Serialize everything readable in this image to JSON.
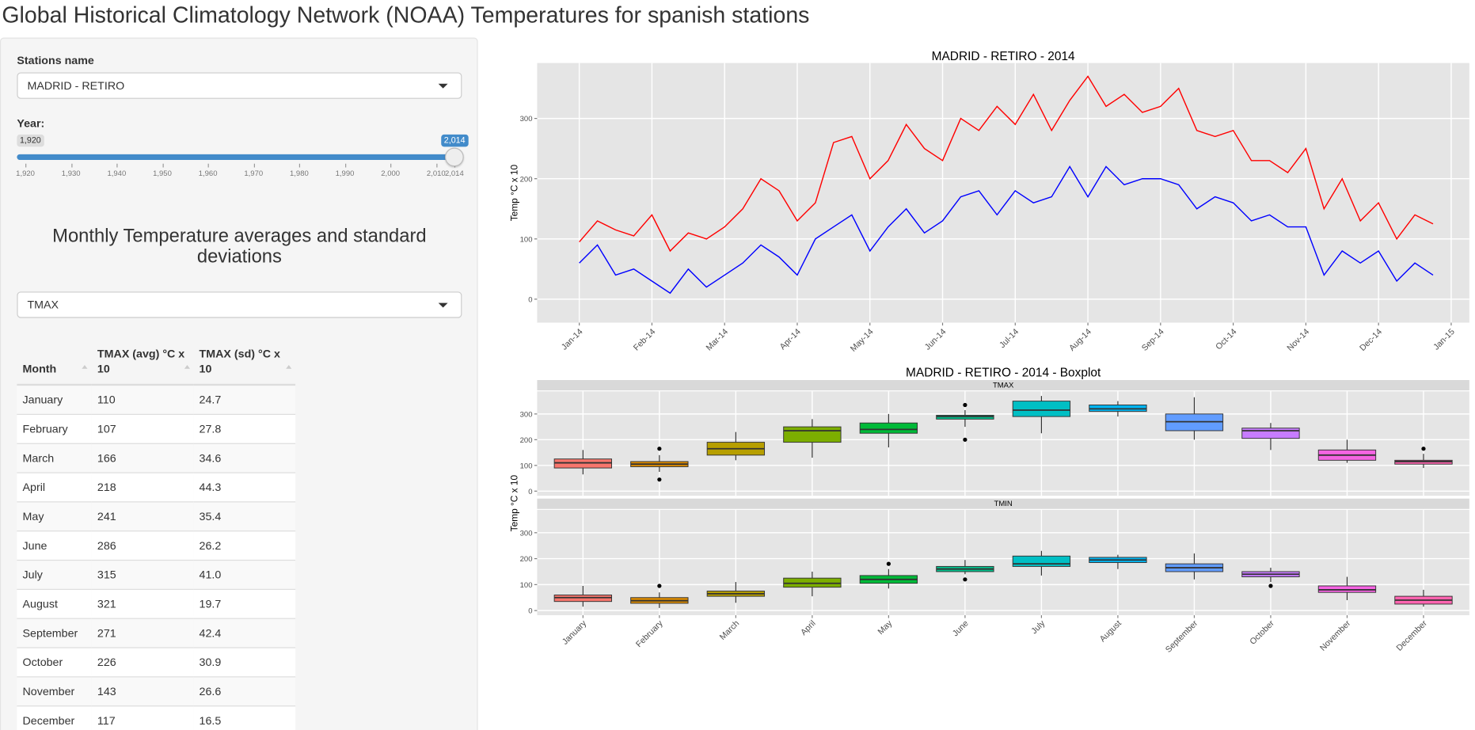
{
  "title": "Global Historical Climatology Network (NOAA) Temperatures for spanish stations",
  "sidebar": {
    "station_label": "Stations name",
    "station": "MADRID - RETIRO",
    "year_label": "Year:",
    "slider": {
      "min": 1920,
      "max": 2014,
      "value": 2014,
      "min_label": "1,920",
      "max_label": "2,014",
      "ticks": [
        {
          "value": 1920,
          "label": "1,920"
        },
        {
          "value": 1930,
          "label": "1,930"
        },
        {
          "value": 1940,
          "label": "1,940"
        },
        {
          "value": 1950,
          "label": "1,950"
        },
        {
          "value": 1960,
          "label": "1,960"
        },
        {
          "value": 1970,
          "label": "1,970"
        },
        {
          "value": 1980,
          "label": "1,980"
        },
        {
          "value": 1990,
          "label": "1,990"
        },
        {
          "value": 2000,
          "label": "2,000"
        },
        {
          "value": 2010,
          "label": "2,010"
        },
        {
          "value": 2014,
          "label": "2,014"
        }
      ]
    },
    "heading": "Monthly Temperature averages and standard deviations",
    "variable": "TMAX",
    "table": {
      "columns": [
        "Month",
        "TMAX (avg) °C x 10",
        "TMAX (sd) °C x 10"
      ],
      "rows": [
        [
          "January",
          "110",
          "24.7"
        ],
        [
          "February",
          "107",
          "27.8"
        ],
        [
          "March",
          "166",
          "34.6"
        ],
        [
          "April",
          "218",
          "44.3"
        ],
        [
          "May",
          "241",
          "35.4"
        ],
        [
          "June",
          "286",
          "26.2"
        ],
        [
          "July",
          "315",
          "41.0"
        ],
        [
          "August",
          "321",
          "19.7"
        ],
        [
          "September",
          "271",
          "42.4"
        ],
        [
          "October",
          "226",
          "30.9"
        ],
        [
          "November",
          "143",
          "26.6"
        ],
        [
          "December",
          "117",
          "16.5"
        ]
      ]
    }
  },
  "chart_data": [
    {
      "type": "line",
      "title": "MADRID - RETIRO - 2014",
      "y_label": "Temp °C x 10",
      "x": [
        0,
        0.25,
        0.5,
        0.75,
        1,
        1.25,
        1.5,
        1.75,
        2,
        2.25,
        2.5,
        2.75,
        3,
        3.25,
        3.5,
        3.75,
        4,
        4.25,
        4.5,
        4.75,
        5,
        5.25,
        5.5,
        5.75,
        6,
        6.25,
        6.5,
        6.75,
        7,
        7.25,
        7.5,
        7.75,
        8,
        8.25,
        8.5,
        8.75,
        9,
        9.25,
        9.5,
        9.75,
        10,
        10.25,
        10.5,
        10.75,
        11,
        11.25,
        11.5,
        11.75
      ],
      "xlim": [
        -0.58,
        12.25
      ],
      "xticks": [
        {
          "value": 0,
          "label": "Jan-14"
        },
        {
          "value": 1,
          "label": "Feb-14"
        },
        {
          "value": 2,
          "label": "Mar-14"
        },
        {
          "value": 3,
          "label": "Apr-14"
        },
        {
          "value": 4,
          "label": "May-14"
        },
        {
          "value": 5,
          "label": "Jun-14"
        },
        {
          "value": 6,
          "label": "Jul-14"
        },
        {
          "value": 7,
          "label": "Aug-14"
        },
        {
          "value": 8,
          "label": "Sep-14"
        },
        {
          "value": 9,
          "label": "Oct-14"
        },
        {
          "value": 10,
          "label": "Nov-14"
        },
        {
          "value": 11,
          "label": "Dec-14"
        },
        {
          "value": 12,
          "label": "Jan-15"
        }
      ],
      "ylim": [
        -39,
        392
      ],
      "yticks": [
        0,
        100,
        200,
        300
      ],
      "grid": true,
      "series": [
        {
          "color": "#ff0000",
          "values": [
            95,
            130,
            115,
            105,
            140,
            80,
            110,
            100,
            120,
            150,
            200,
            180,
            130,
            160,
            260,
            270,
            200,
            230,
            290,
            250,
            230,
            300,
            280,
            320,
            290,
            340,
            280,
            330,
            370,
            320,
            340,
            310,
            320,
            350,
            280,
            270,
            280,
            230,
            230,
            210,
            250,
            150,
            200,
            130,
            160,
            100,
            140,
            125
          ]
        },
        {
          "color": "#0000ff",
          "values": [
            60,
            90,
            40,
            50,
            30,
            10,
            50,
            20,
            40,
            60,
            90,
            70,
            40,
            100,
            120,
            140,
            80,
            120,
            150,
            110,
            130,
            170,
            180,
            140,
            180,
            160,
            170,
            220,
            170,
            220,
            190,
            200,
            200,
            190,
            150,
            170,
            160,
            130,
            140,
            120,
            120,
            40,
            80,
            60,
            80,
            30,
            60,
            40
          ]
        }
      ]
    },
    {
      "type": "boxplot",
      "title": "MADRID - RETIRO - 2014 - Boxplot",
      "y_label": "Temp °C x 10",
      "categories": [
        "January",
        "February",
        "March",
        "April",
        "May",
        "June",
        "July",
        "August",
        "September",
        "October",
        "November",
        "December"
      ],
      "colors": [
        "#F8766D",
        "#DE8C00",
        "#B79F00",
        "#7CAE00",
        "#00BA38",
        "#00C08B",
        "#00BFC4",
        "#00B4F0",
        "#619CFF",
        "#C77CFF",
        "#F564E3",
        "#FF64B0"
      ],
      "ylim": [
        -18,
        388
      ],
      "yticks": [
        0,
        100,
        200,
        300
      ],
      "grid": true,
      "facets": [
        {
          "name": "TMAX",
          "low": [
            65,
            75,
            120,
            130,
            170,
            250,
            225,
            290,
            200,
            160,
            110,
            90
          ],
          "q1": [
            90,
            95,
            140,
            190,
            225,
            280,
            290,
            310,
            235,
            205,
            120,
            105
          ],
          "median": [
            110,
            105,
            165,
            235,
            240,
            290,
            315,
            320,
            270,
            235,
            140,
            115
          ],
          "q3": [
            125,
            115,
            190,
            250,
            265,
            295,
            350,
            335,
            300,
            245,
            160,
            120
          ],
          "high": [
            160,
            140,
            230,
            280,
            300,
            315,
            370,
            350,
            365,
            265,
            200,
            145
          ],
          "outliers": [
            [],
            [
              165,
              45
            ],
            [],
            [],
            [],
            [
              335,
              200
            ],
            [],
            [],
            [],
            [],
            [],
            [
              165
            ]
          ]
        },
        {
          "name": "TMIN",
          "low": [
            15,
            10,
            30,
            55,
            85,
            140,
            135,
            160,
            120,
            110,
            40,
            15
          ],
          "q1": [
            35,
            28,
            55,
            90,
            105,
            150,
            170,
            185,
            150,
            130,
            70,
            25
          ],
          "median": [
            50,
            38,
            65,
            105,
            120,
            160,
            180,
            195,
            165,
            140,
            80,
            40
          ],
          "q3": [
            60,
            50,
            75,
            125,
            135,
            170,
            210,
            205,
            180,
            150,
            95,
            55
          ],
          "high": [
            95,
            70,
            110,
            150,
            160,
            195,
            230,
            215,
            220,
            165,
            130,
            80
          ],
          "outliers": [
            [],
            [
              95
            ],
            [],
            [],
            [
              180
            ],
            [
              120
            ],
            [],
            [],
            [],
            [
              95
            ],
            [],
            []
          ]
        }
      ]
    }
  ]
}
